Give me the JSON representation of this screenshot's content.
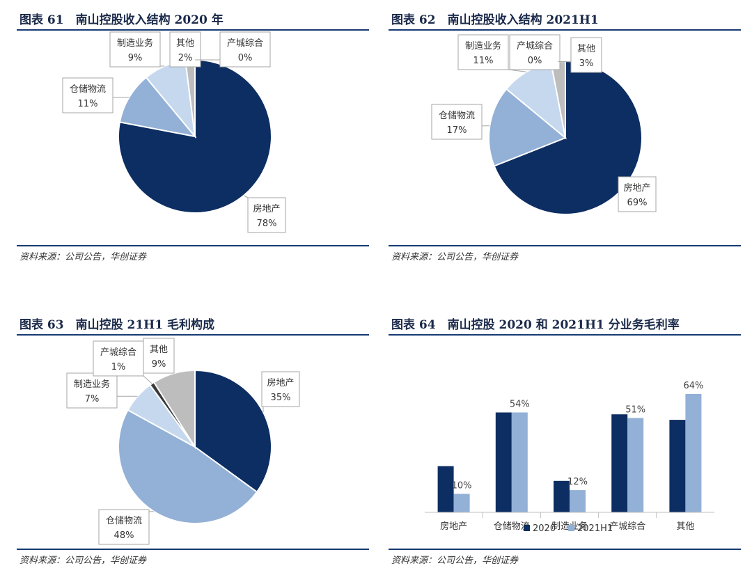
{
  "source": "资料来源：公司公告，华创证券",
  "colors": {
    "house": "#0d2e62",
    "storage": "#93b0d6",
    "manufacture": "#c5d8ee",
    "cityint": "#3a3a3a",
    "other": "#bdbdbd",
    "bar2020": "#0d2e62",
    "bar2021": "#93b0d6"
  },
  "charts": [
    {
      "id": "p61",
      "title": "图表 61　南山控股收入结构 2020 年",
      "chart_data": {
        "type": "pie",
        "categories": [
          "房地产",
          "仓储物流",
          "制造业务",
          "其他",
          "产城综合"
        ],
        "values": [
          78,
          11,
          9,
          2,
          0
        ],
        "labels": [
          "78%",
          "11%",
          "9%",
          "2%",
          "0%"
        ]
      }
    },
    {
      "id": "p62",
      "title": "图表 62　南山控股收入结构 2021H1",
      "chart_data": {
        "type": "pie",
        "categories": [
          "房地产",
          "仓储物流",
          "制造业务",
          "产城综合",
          "其他"
        ],
        "values": [
          69,
          17,
          11,
          0,
          3
        ],
        "labels": [
          "69%",
          "17%",
          "11%",
          "0%",
          "3%"
        ]
      }
    },
    {
      "id": "p63",
      "title": "图表 63　南山控股 21H1 毛利构成",
      "chart_data": {
        "type": "pie",
        "categories": [
          "房地产",
          "仓储物流",
          "制造业务",
          "产城综合",
          "其他"
        ],
        "values": [
          35,
          48,
          7,
          1,
          9
        ],
        "labels": [
          "35%",
          "48%",
          "7%",
          "1%",
          "9%"
        ]
      }
    },
    {
      "id": "p64",
      "title": "图表 64　南山控股 2020 和 2021H1 分业务毛利率",
      "chart_data": {
        "type": "bar",
        "categories": [
          "房地产",
          "仓储物流",
          "制造业务",
          "产城综合",
          "其他"
        ],
        "series": [
          {
            "name": "2020",
            "values": [
              25,
              54,
              17,
              53,
              50
            ]
          },
          {
            "name": "2021H1",
            "values": [
              10,
              54,
              12,
              51,
              64
            ]
          }
        ],
        "data_labels": [
          "10%",
          "54%",
          "12%",
          "51%",
          "64%"
        ],
        "ylim": [
          0,
          70
        ]
      }
    }
  ]
}
